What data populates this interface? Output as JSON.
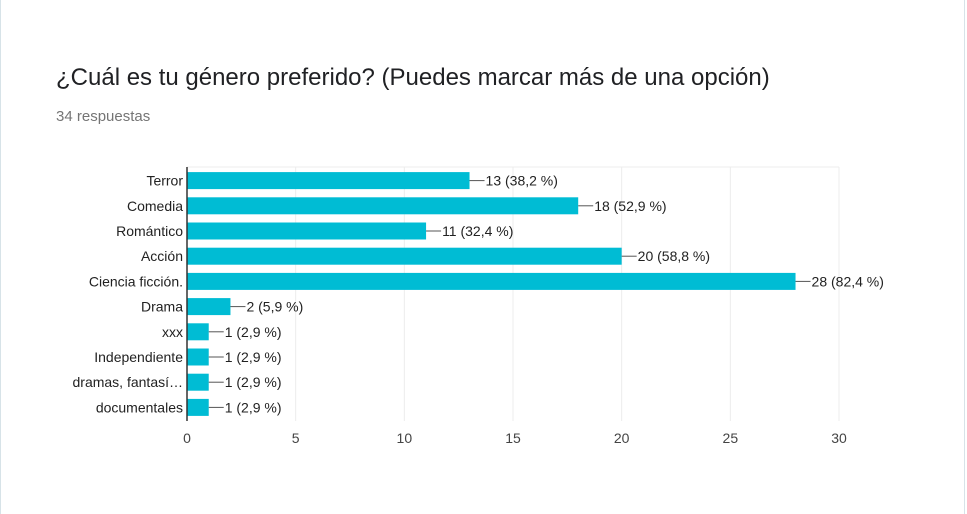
{
  "question": {
    "title": "¿Cuál es tu género preferido? (Puedes marcar más de una opción)",
    "responses": "34 respuestas"
  },
  "chart_data": {
    "type": "bar",
    "orientation": "horizontal",
    "categories": [
      "Terror",
      "Comedia",
      "Romántico",
      "Acción",
      "Ciencia ficción.",
      "Drama",
      "xxx",
      "Independiente",
      "dramas, fantasí…",
      "documentales"
    ],
    "values": [
      13,
      18,
      11,
      20,
      28,
      2,
      1,
      1,
      1,
      1
    ],
    "value_labels": [
      "13 (38,2 %)",
      "18 (52,9 %)",
      "11 (32,4 %)",
      "20 (58,8 %)",
      "28 (82,4 %)",
      "2 (5,9 %)",
      "1 (2,9 %)",
      "1 (2,9 %)",
      "1 (2,9 %)",
      "1 (2,9 %)"
    ],
    "xlim": [
      0,
      30
    ],
    "xticks": [
      0,
      5,
      10,
      15,
      20,
      25,
      30
    ],
    "grid": true,
    "legend": "none",
    "colors": {
      "bar": "#00bcd4",
      "grid": "#ececec",
      "axis": "#333333",
      "label_text": "#222222",
      "tick_text": "#444444"
    }
  }
}
